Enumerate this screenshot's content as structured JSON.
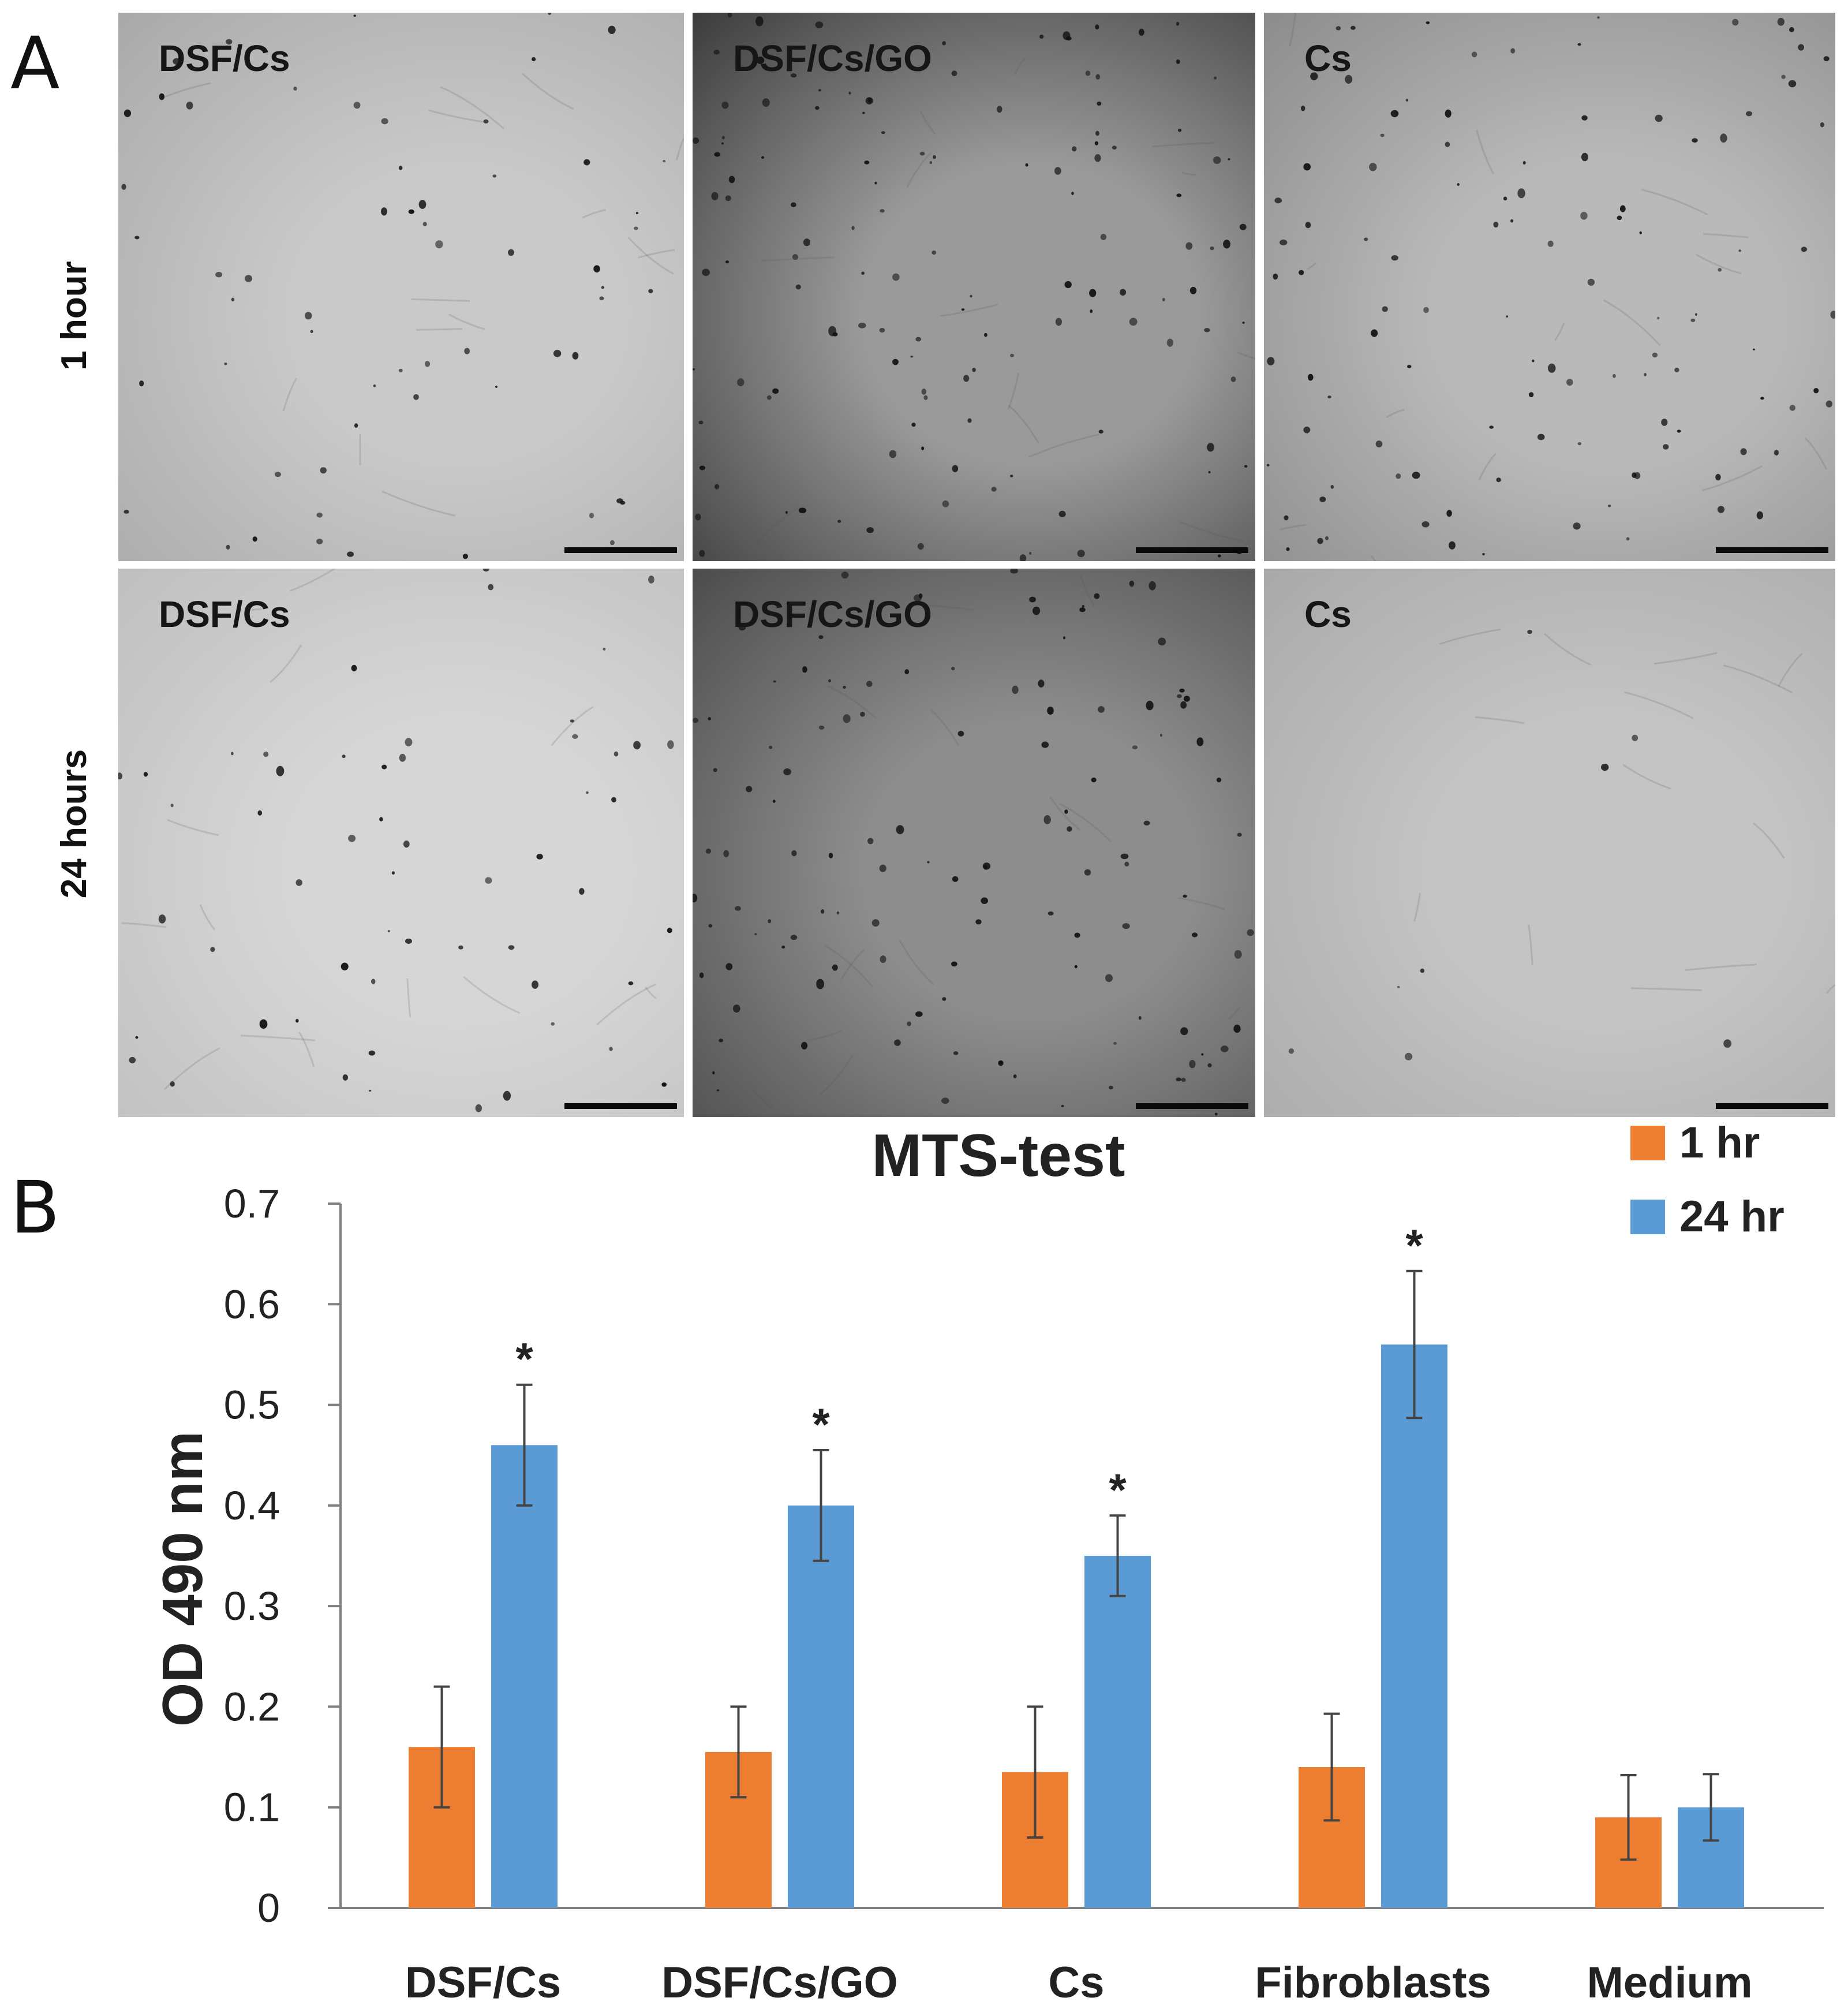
{
  "panel_a": {
    "letter": "A",
    "row_labels": [
      "1 hour",
      "24 hours"
    ],
    "images": [
      {
        "label": "DSF/Cs",
        "tone": "#c9c9c9",
        "tone_dark": "#a9a9a9"
      },
      {
        "label": "DSF/Cs/GO",
        "tone": "#9a9a9a",
        "tone_dark": "#3c3c3c"
      },
      {
        "label": "Cs",
        "tone": "#b9b9b9",
        "tone_dark": "#8c8c8c"
      },
      {
        "label": "DSF/Cs",
        "tone": "#d6d6d6",
        "tone_dark": "#bfbfbf"
      },
      {
        "label": "DSF/Cs/GO",
        "tone": "#8d8d8d",
        "tone_dark": "#4c4c4c"
      },
      {
        "label": "Cs",
        "tone": "#c4c4c4",
        "tone_dark": "#a9a9a9"
      }
    ]
  },
  "panel_b": {
    "letter": "B"
  },
  "chart_data": {
    "type": "bar",
    "title": "MTS-test",
    "xlabel": "",
    "ylabel": "OD 490 nm",
    "ylim": [
      0,
      0.7
    ],
    "yticks": [
      0,
      0.1,
      0.2,
      0.3,
      0.4,
      0.5,
      0.6,
      0.7
    ],
    "ytick_labels": [
      "0",
      "0.1",
      "0.2",
      "0.3",
      "0.4",
      "0.5",
      "0.6",
      "0.7"
    ],
    "categories": [
      "DSF/Cs",
      "DSF/Cs/GO",
      "Cs",
      "Fibroblasts",
      "Medium"
    ],
    "series": [
      {
        "name": "1 hr",
        "color": "#ed7d31",
        "values": [
          0.16,
          0.155,
          0.135,
          0.14,
          0.09
        ],
        "errors": [
          0.06,
          0.045,
          0.065,
          0.053,
          0.042
        ]
      },
      {
        "name": "24 hr",
        "color": "#5b9bd5",
        "values": [
          0.46,
          0.4,
          0.35,
          0.56,
          0.1
        ],
        "errors": [
          0.06,
          0.055,
          0.04,
          0.073,
          0.033
        ]
      }
    ],
    "significance_marker": "*",
    "significance": [
      [
        false,
        false,
        false,
        false,
        false
      ],
      [
        true,
        true,
        true,
        true,
        false
      ]
    ],
    "legend_position": "top-right",
    "grid": false
  }
}
